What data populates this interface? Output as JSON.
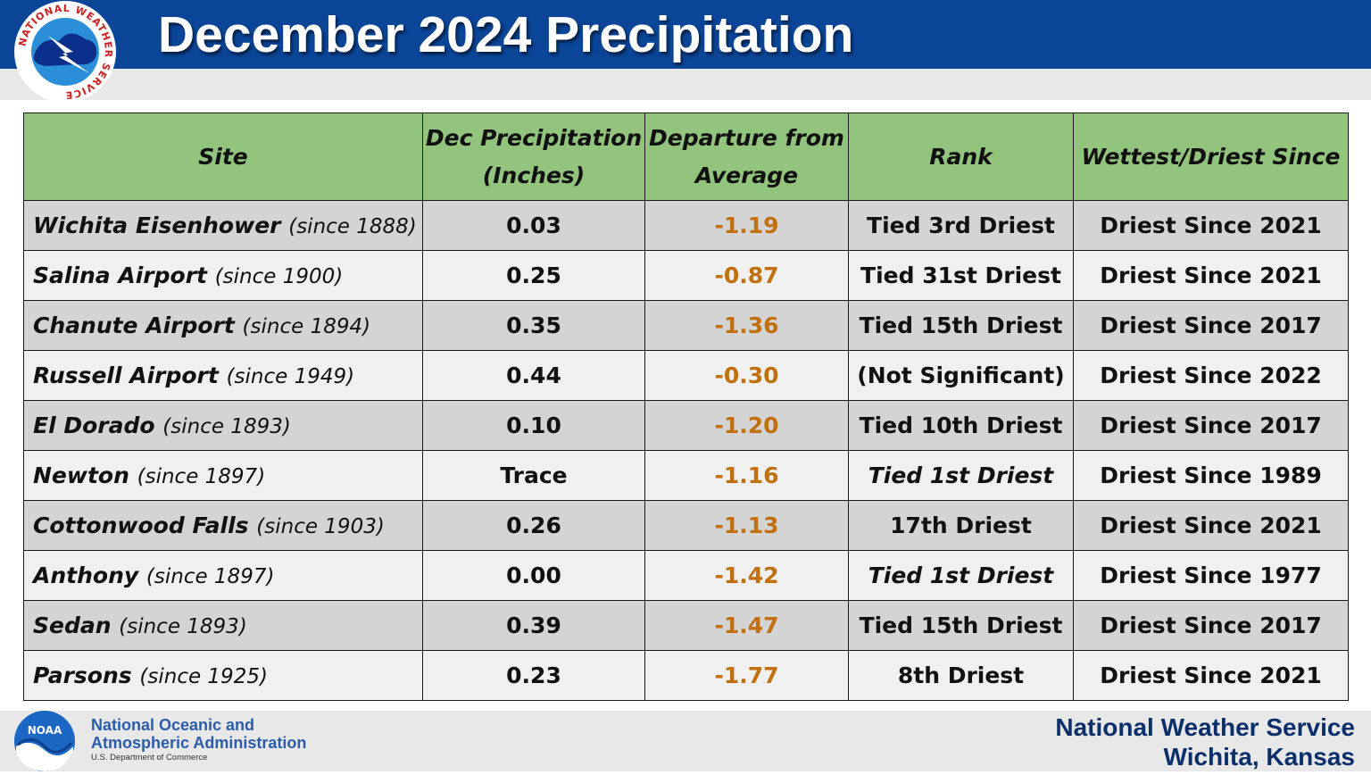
{
  "header": {
    "title": "December 2024 Precipitation",
    "logo_text": "NATIONAL WEATHER SERVICE"
  },
  "table": {
    "columns": [
      {
        "line1": "Site",
        "line2": ""
      },
      {
        "line1": "Dec Precipitation",
        "line2": "(Inches)"
      },
      {
        "line1": "Departure from",
        "line2": "Average"
      },
      {
        "line1": "Rank",
        "line2": ""
      },
      {
        "line1": "Wettest/Driest Since",
        "line2": ""
      }
    ],
    "rows": [
      {
        "site": "Wichita Eisenhower",
        "since": "(since 1888)",
        "precip": "0.03",
        "departure": "-1.19",
        "rank": "Tied 3rd Driest",
        "rank_italic": false,
        "record": "Driest Since 2021"
      },
      {
        "site": "Salina Airport",
        "since": "(since 1900)",
        "precip": "0.25",
        "departure": "-0.87",
        "rank": "Tied 31st Driest",
        "rank_italic": false,
        "record": "Driest Since 2021"
      },
      {
        "site": "Chanute Airport",
        "since": "(since 1894)",
        "precip": "0.35",
        "departure": "-1.36",
        "rank": "Tied 15th Driest",
        "rank_italic": false,
        "record": "Driest Since 2017"
      },
      {
        "site": "Russell Airport",
        "since": "(since 1949)",
        "precip": "0.44",
        "departure": "-0.30",
        "rank": "(Not Significant)",
        "rank_italic": false,
        "record": "Driest Since 2022"
      },
      {
        "site": "El Dorado",
        "since": "(since 1893)",
        "precip": "0.10",
        "departure": "-1.20",
        "rank": "Tied 10th Driest",
        "rank_italic": false,
        "record": "Driest Since 2017"
      },
      {
        "site": "Newton",
        "since": "(since 1897)",
        "precip": "Trace",
        "departure": "-1.16",
        "rank": "Tied 1st Driest",
        "rank_italic": true,
        "record": "Driest Since 1989"
      },
      {
        "site": "Cottonwood Falls",
        "since": "(since 1903)",
        "precip": "0.26",
        "departure": "-1.13",
        "rank": "17th Driest",
        "rank_italic": false,
        "record": "Driest Since 2021"
      },
      {
        "site": "Anthony",
        "since": "(since 1897)",
        "precip": "0.00",
        "departure": "-1.42",
        "rank": "Tied 1st Driest",
        "rank_italic": true,
        "record": "Driest Since 1977"
      },
      {
        "site": "Sedan",
        "since": "(since 1893)",
        "precip": "0.39",
        "departure": "-1.47",
        "rank": "Tied 15th Driest",
        "rank_italic": false,
        "record": "Driest Since 2017"
      },
      {
        "site": "Parsons",
        "since": "(since 1925)",
        "precip": "0.23",
        "departure": "-1.77",
        "rank": "8th Driest",
        "rank_italic": false,
        "record": "Driest Since 2021"
      }
    ]
  },
  "footer": {
    "noaa_logo_text": "NOAA",
    "noaa_line1": "National Oceanic and",
    "noaa_line2": "Atmospheric Administration",
    "noaa_line3": "U.S. Department of Commerce",
    "office_line1": "National Weather Service",
    "office_line2": "Wichita, Kansas"
  },
  "colors": {
    "header_bg": "#0b4597",
    "header_row_bg": "#93c47d",
    "row_shade": "#d4d4d4",
    "row_light": "#f0f0f0",
    "departure_text": "#c0700f",
    "footer_text": "#0b2f6b",
    "noaa_text": "#2a5caa"
  }
}
